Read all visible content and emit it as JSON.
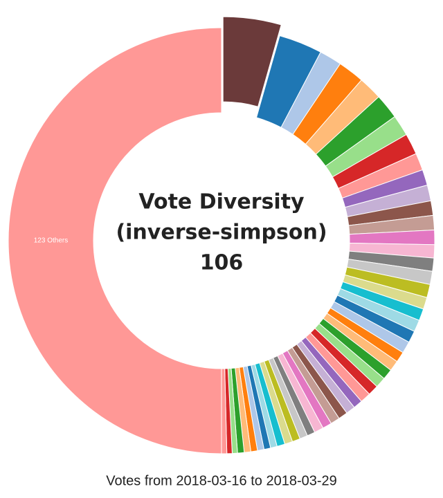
{
  "chart_data": {
    "type": "donut",
    "center_title": [
      "Vote Diversity",
      "(inverse-simpson)"
    ],
    "diversity": 106,
    "subtitle": "Votes from 2018-03-16 to 2018-03-29",
    "exploded": 0,
    "categories": [
      null,
      null,
      null,
      null,
      null,
      null,
      null,
      null,
      null,
      null,
      null,
      null,
      null,
      null,
      null,
      null,
      null,
      null,
      null,
      null,
      null,
      null,
      null,
      null,
      null,
      null,
      null,
      null,
      null,
      null,
      null,
      null,
      null,
      null,
      null,
      null,
      null,
      null,
      null,
      null,
      null,
      null,
      null,
      null,
      null,
      null,
      null,
      null,
      null,
      "123 Others"
    ],
    "values": [
      4.4,
      3.3,
      1.7,
      2.0,
      1.8,
      1.9,
      1.6,
      1.6,
      1.3,
      1.2,
      1.2,
      1.1,
      1.1,
      1.1,
      1.0,
      1.0,
      1.0,
      1.0,
      0.9,
      0.9,
      0.9,
      0.9,
      0.9,
      0.8,
      0.8,
      0.8,
      0.8,
      0.8,
      0.8,
      0.7,
      0.7,
      0.7,
      0.7,
      0.7,
      0.7,
      0.6,
      0.6,
      0.6,
      0.6,
      0.6,
      0.5,
      0.5,
      0.5,
      0.5,
      0.5,
      0.5,
      0.4,
      0.4,
      0.4,
      50
    ],
    "colors": [
      "#6b3a3a",
      "#1f77b4",
      "#aec7e8",
      "#ff7f0e",
      "#ffbb78",
      "#2ca02c",
      "#98df8a",
      "#d62728",
      "#ff9896",
      "#9467bd",
      "#c5b0d5",
      "#8c564b",
      "#c49c94",
      "#e377c2",
      "#f7b6d2",
      "#7f7f7f",
      "#c7c7c7",
      "#bcbd22",
      "#dbdb8d",
      "#17becf",
      "#9edae5",
      "#1f77b4",
      "#aec7e8",
      "#ff7f0e",
      "#ffbb78",
      "#2ca02c",
      "#98df8a",
      "#d62728",
      "#ff9896",
      "#9467bd",
      "#c5b0d5",
      "#8c564b",
      "#c49c94",
      "#e377c2",
      "#f7b6d2",
      "#7f7f7f",
      "#c7c7c7",
      "#bcbd22",
      "#dbdb8d",
      "#17becf",
      "#9edae5",
      "#1f77b4",
      "#aec7e8",
      "#ff7f0e",
      "#ffbb78",
      "#2ca02c",
      "#98df8a",
      "#d62728",
      "#ff9896",
      "#ff9896"
    ]
  }
}
